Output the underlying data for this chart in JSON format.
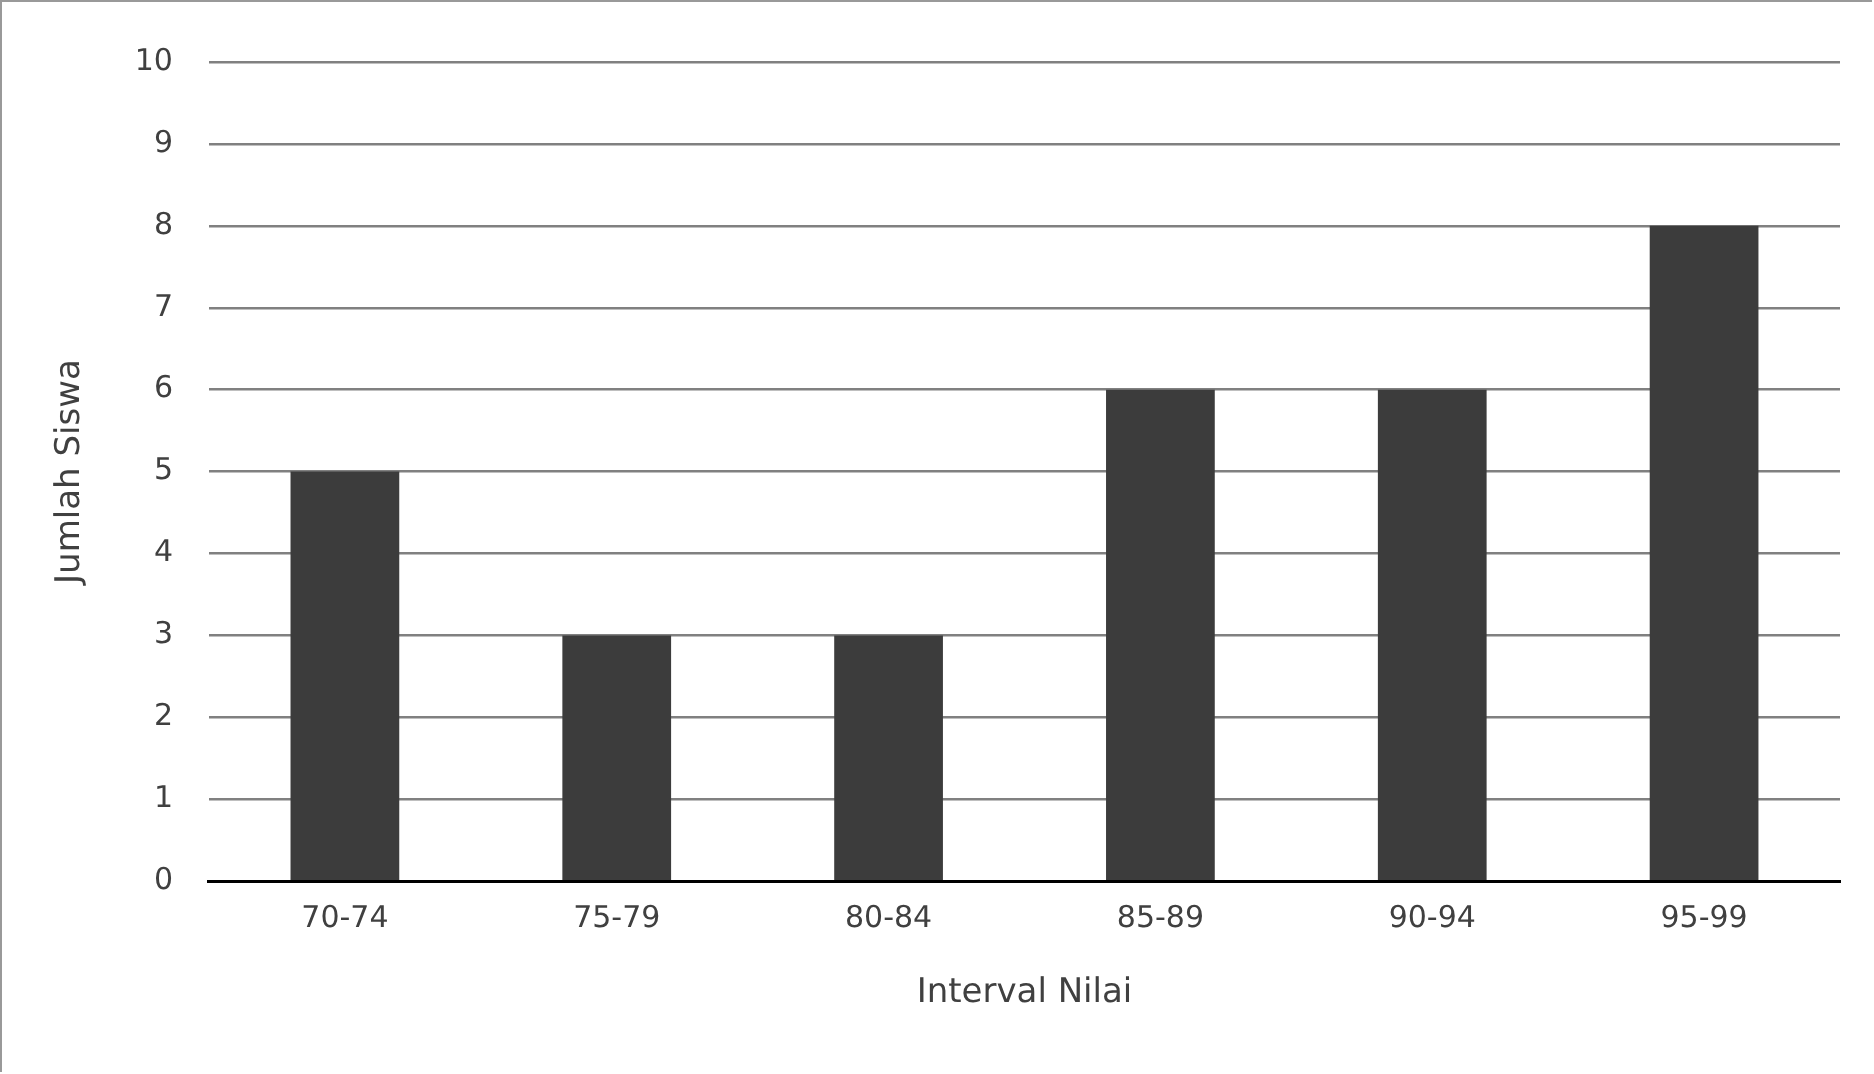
{
  "chart_data": {
    "type": "bar",
    "xlabel": "Interval Nilai",
    "ylabel": "Jumlah Siswa",
    "categories": [
      "70-74",
      "75-79",
      "80-84",
      "85-89",
      "90-94",
      "95-99"
    ],
    "values": [
      5,
      3,
      3,
      6,
      6,
      8
    ],
    "color": "#3c3c3c",
    "ylim": [
      0,
      10
    ],
    "yticks": [
      0,
      1,
      2,
      3,
      4,
      5,
      6,
      7,
      8,
      9,
      10
    ],
    "grid": "y"
  }
}
